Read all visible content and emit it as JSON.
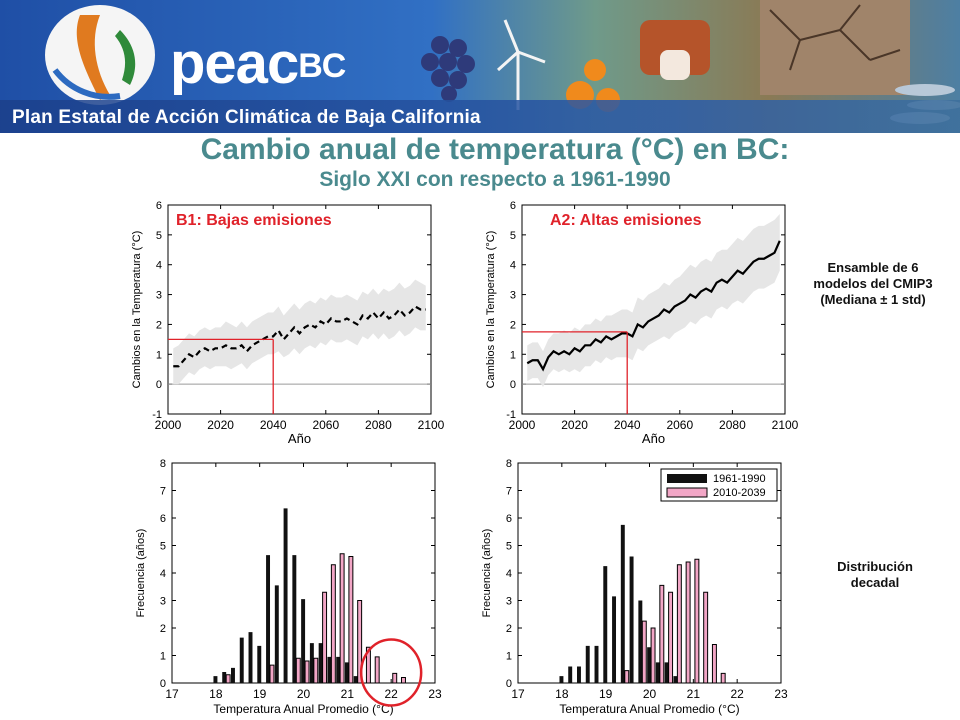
{
  "banner": {
    "logo_text": "peac",
    "logo_text_suffix": "BC",
    "title": "Plan Estatal de Acción Climática de Baja California"
  },
  "title": "Cambio anual de temperatura (°C) en BC:",
  "subtitle": "Siglo XXI con respecto a 1961-1990",
  "side_note_1": "Ensamble de 6 modelos del CMIP3 (Mediana ± 1 std)",
  "side_note_2": "Distribución decadal",
  "colors": {
    "title": "#4a8a8e",
    "panel_title": "#e0222a",
    "marker": "#e0222a",
    "band": "#e6e6e6",
    "bar_hist": "#111111",
    "bar_future": "#f2a6c6"
  },
  "chart_data": [
    {
      "type": "line",
      "panel_title": "B1: Bajas emisiones",
      "xlabel": "Año",
      "ylabel": "Cambios en la Temperatura (°C)",
      "xlim": [
        2000,
        2100
      ],
      "ylim": [
        -1,
        6
      ],
      "xticks": [
        2000,
        2020,
        2040,
        2060,
        2080,
        2100
      ],
      "yticks": [
        -1,
        0,
        1,
        2,
        3,
        4,
        5,
        6
      ],
      "line_style": "dashed",
      "x": [
        2002,
        2004,
        2006,
        2008,
        2010,
        2012,
        2014,
        2016,
        2018,
        2020,
        2022,
        2024,
        2026,
        2028,
        2030,
        2032,
        2034,
        2036,
        2038,
        2040,
        2042,
        2044,
        2046,
        2048,
        2050,
        2052,
        2054,
        2056,
        2058,
        2060,
        2062,
        2064,
        2066,
        2068,
        2070,
        2072,
        2074,
        2076,
        2078,
        2080,
        2082,
        2084,
        2086,
        2088,
        2090,
        2092,
        2094,
        2096,
        2098
      ],
      "median": [
        0.6,
        0.6,
        0.8,
        1.0,
        0.9,
        1.1,
        1.2,
        1.1,
        1.2,
        1.2,
        1.3,
        1.2,
        1.2,
        1.3,
        1.1,
        1.3,
        1.4,
        1.5,
        1.6,
        1.6,
        1.8,
        1.5,
        1.7,
        1.9,
        1.7,
        1.9,
        2.0,
        1.9,
        2.1,
        2.0,
        2.2,
        2.1,
        2.1,
        2.2,
        2.1,
        2.0,
        2.3,
        2.2,
        2.4,
        2.2,
        2.4,
        2.2,
        2.3,
        2.5,
        2.3,
        2.4,
        2.6,
        2.5,
        2.5
      ],
      "upper": [
        1.2,
        1.3,
        1.5,
        1.7,
        1.6,
        1.8,
        1.9,
        1.8,
        1.9,
        1.9,
        2.1,
        2.0,
        1.9,
        2.1,
        1.9,
        2.1,
        2.2,
        2.3,
        2.4,
        2.4,
        2.6,
        2.3,
        2.5,
        2.7,
        2.5,
        2.7,
        2.8,
        2.7,
        2.9,
        2.8,
        3.0,
        2.9,
        2.9,
        3.0,
        2.9,
        2.8,
        3.1,
        3.0,
        3.2,
        3.0,
        3.2,
        3.1,
        3.2,
        3.4,
        3.2,
        3.3,
        3.5,
        3.4,
        3.3
      ],
      "lower": [
        0.0,
        0.0,
        0.2,
        0.4,
        0.3,
        0.5,
        0.6,
        0.5,
        0.6,
        0.6,
        0.6,
        0.5,
        0.6,
        0.7,
        0.5,
        0.7,
        0.8,
        0.9,
        1.0,
        1.0,
        1.1,
        0.9,
        1.0,
        1.2,
        1.0,
        1.2,
        1.3,
        1.2,
        1.4,
        1.3,
        1.5,
        1.4,
        1.4,
        1.5,
        1.4,
        1.3,
        1.6,
        1.5,
        1.7,
        1.5,
        1.7,
        1.5,
        1.6,
        1.8,
        1.6,
        1.7,
        1.9,
        1.8,
        1.8
      ],
      "marker": {
        "year": 2040,
        "value": 1.5
      }
    },
    {
      "type": "line",
      "panel_title": "A2: Altas emisiones",
      "xlabel": "Año",
      "ylabel": "Cambios en la Temperatura (°C)",
      "xlim": [
        2000,
        2100
      ],
      "ylim": [
        -1,
        6
      ],
      "xticks": [
        2000,
        2020,
        2040,
        2060,
        2080,
        2100
      ],
      "yticks": [
        -1,
        0,
        1,
        2,
        3,
        4,
        5,
        6
      ],
      "line_style": "solid",
      "x": [
        2002,
        2004,
        2006,
        2008,
        2010,
        2012,
        2014,
        2016,
        2018,
        2020,
        2022,
        2024,
        2026,
        2028,
        2030,
        2032,
        2034,
        2036,
        2038,
        2040,
        2042,
        2044,
        2046,
        2048,
        2050,
        2052,
        2054,
        2056,
        2058,
        2060,
        2062,
        2064,
        2066,
        2068,
        2070,
        2072,
        2074,
        2076,
        2078,
        2080,
        2082,
        2084,
        2086,
        2088,
        2090,
        2092,
        2094,
        2096,
        2098
      ],
      "median": [
        0.7,
        0.8,
        0.8,
        0.5,
        0.9,
        1.1,
        1.0,
        1.1,
        1.0,
        1.2,
        1.1,
        1.3,
        1.3,
        1.5,
        1.4,
        1.6,
        1.5,
        1.6,
        1.7,
        1.7,
        1.6,
        2.0,
        1.9,
        2.1,
        2.2,
        2.3,
        2.5,
        2.4,
        2.6,
        2.7,
        2.8,
        3.0,
        2.9,
        3.1,
        3.2,
        3.1,
        3.4,
        3.5,
        3.4,
        3.6,
        3.8,
        3.7,
        3.9,
        4.1,
        4.2,
        4.2,
        4.3,
        4.4,
        4.8
      ],
      "upper": [
        1.3,
        1.4,
        1.4,
        1.1,
        1.5,
        1.7,
        1.7,
        1.8,
        1.7,
        1.9,
        1.8,
        2.0,
        2.0,
        2.2,
        2.1,
        2.3,
        2.3,
        2.4,
        2.5,
        2.5,
        2.4,
        2.9,
        2.8,
        3.0,
        3.1,
        3.2,
        3.4,
        3.3,
        3.5,
        3.6,
        3.8,
        4.0,
        3.9,
        4.1,
        4.2,
        4.1,
        4.4,
        4.5,
        4.5,
        4.7,
        4.9,
        4.8,
        5.0,
        5.2,
        5.3,
        5.3,
        5.4,
        5.5,
        5.7
      ],
      "lower": [
        0.1,
        0.2,
        0.2,
        -0.1,
        0.3,
        0.5,
        0.4,
        0.5,
        0.4,
        0.5,
        0.4,
        0.6,
        0.6,
        0.8,
        0.7,
        0.9,
        0.8,
        0.9,
        0.9,
        0.9,
        0.8,
        1.2,
        1.1,
        1.3,
        1.4,
        1.5,
        1.6,
        1.5,
        1.7,
        1.8,
        1.9,
        2.1,
        2.0,
        2.2,
        2.3,
        2.2,
        2.5,
        2.6,
        2.5,
        2.7,
        2.8,
        2.7,
        2.9,
        3.1,
        3.2,
        3.2,
        3.3,
        3.4,
        3.8
      ],
      "marker": {
        "year": 2040,
        "value": 1.75
      }
    },
    {
      "type": "bar",
      "xlabel": "Temperatura Anual Promedio (°C)",
      "ylabel": "Frecuencia (años)",
      "xlim": [
        17,
        23
      ],
      "ylim": [
        0,
        8
      ],
      "xticks": [
        17,
        18,
        19,
        20,
        21,
        22,
        23
      ],
      "yticks": [
        0,
        1,
        2,
        3,
        4,
        5,
        6,
        7,
        8
      ],
      "series": [
        {
          "name": "1961-1990",
          "x": [
            18.0,
            18.2,
            18.4,
            18.6,
            18.8,
            19.0,
            19.2,
            19.4,
            19.6,
            19.8,
            20.0,
            20.2,
            20.4,
            20.6,
            20.8,
            21.0,
            21.2
          ],
          "values": [
            0.25,
            0.4,
            0.55,
            1.65,
            1.85,
            1.35,
            4.65,
            3.55,
            6.35,
            4.65,
            3.05,
            1.45,
            1.45,
            0.95,
            0.95,
            0.75,
            0.25
          ]
        },
        {
          "name": "2010-2039",
          "x": [
            18.2,
            19.2,
            19.8,
            20.0,
            20.2,
            20.4,
            20.6,
            20.8,
            21.0,
            21.2,
            21.4,
            21.6,
            22.0,
            22.2
          ],
          "values": [
            0.3,
            0.65,
            0.9,
            0.8,
            0.9,
            3.3,
            4.3,
            4.7,
            4.6,
            3.0,
            1.3,
            0.95,
            0.35,
            0.2
          ]
        }
      ],
      "highlight_circle": {
        "x": 22.0,
        "y": 0.6
      }
    },
    {
      "type": "bar",
      "xlabel": "Temperatura Anual Promedio (°C)",
      "ylabel": "Frecuencia (años)",
      "xlim": [
        17,
        23
      ],
      "ylim": [
        0,
        8
      ],
      "xticks": [
        17,
        18,
        19,
        20,
        21,
        22,
        23
      ],
      "yticks": [
        0,
        1,
        2,
        3,
        4,
        5,
        6,
        7,
        8
      ],
      "legend": [
        "1961-1990",
        "2010-2039"
      ],
      "legend_position": "top-right",
      "series": [
        {
          "name": "1961-1990",
          "x": [
            18.0,
            18.2,
            18.4,
            18.6,
            18.8,
            19.0,
            19.2,
            19.4,
            19.6,
            19.8,
            20.0,
            20.2,
            20.4,
            20.6
          ],
          "values": [
            0.25,
            0.6,
            0.6,
            1.35,
            1.35,
            4.25,
            3.15,
            5.75,
            4.6,
            3.0,
            1.3,
            0.75,
            0.75,
            0.25
          ]
        },
        {
          "name": "2010-2039",
          "x": [
            19.4,
            19.8,
            20.0,
            20.2,
            20.4,
            20.6,
            20.8,
            21.0,
            21.2,
            21.4,
            21.6
          ],
          "values": [
            0.45,
            2.25,
            2.0,
            3.55,
            3.3,
            4.3,
            4.4,
            4.5,
            3.3,
            1.4,
            0.35
          ]
        }
      ]
    }
  ]
}
